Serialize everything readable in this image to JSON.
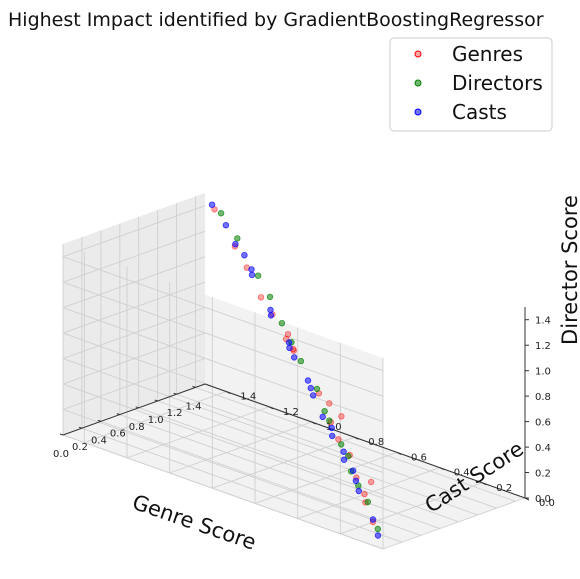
{
  "chart_data": {
    "type": "scatter",
    "projection": "3d",
    "title": "Highest Impact identified by GradientBoostingRegressor",
    "xlabel": "Genre Score",
    "ylabel": "Cast Score",
    "zlabel": "Director Score",
    "xlim": [
      0.0,
      1.5
    ],
    "ylim": [
      0.0,
      1.5
    ],
    "zlim": [
      0.0,
      1.5
    ],
    "x_ticks": [
      "0.0",
      "0.2",
      "0.4",
      "0.6",
      "0.8",
      "1.0",
      "1.2",
      "1.4"
    ],
    "y_ticks": [
      "0.0",
      "0.2",
      "0.4",
      "0.6",
      "0.8",
      "1.0",
      "1.2",
      "1.4"
    ],
    "z_ticks": [
      "0.0",
      "0.2",
      "0.4",
      "0.6",
      "0.8",
      "1.0",
      "1.2",
      "1.4"
    ],
    "grid": true,
    "legend_position": "top-right",
    "series": [
      {
        "name": "Genres",
        "color": "#ff0000",
        "points": [
          {
            "x": 0.12,
            "y": 0.1,
            "z": 0.12
          },
          {
            "x": 0.22,
            "y": 0.18,
            "z": 0.2
          },
          {
            "x": 0.3,
            "y": 0.22,
            "z": 0.22
          },
          {
            "x": 0.35,
            "y": 0.28,
            "z": 0.3
          },
          {
            "x": 0.46,
            "y": 0.36,
            "z": 0.4
          },
          {
            "x": 0.52,
            "y": 0.44,
            "z": 0.46
          },
          {
            "x": 0.62,
            "y": 0.52,
            "z": 0.52
          },
          {
            "x": 0.72,
            "y": 0.62,
            "z": 0.66
          },
          {
            "x": 0.74,
            "y": 0.58,
            "z": 0.6
          },
          {
            "x": 0.86,
            "y": 0.8,
            "z": 0.85
          },
          {
            "x": 0.9,
            "y": 0.82,
            "z": 0.84
          },
          {
            "x": 0.98,
            "y": 0.88,
            "z": 0.9
          },
          {
            "x": 1.04,
            "y": 0.98,
            "z": 0.98
          },
          {
            "x": 1.1,
            "y": 1.06,
            "z": 1.05
          },
          {
            "x": 1.22,
            "y": 1.18,
            "z": 1.18
          },
          {
            "x": 1.32,
            "y": 1.28,
            "z": 1.26
          },
          {
            "x": 1.42,
            "y": 1.42,
            "z": 1.44
          },
          {
            "x": 0.55,
            "y": 0.3,
            "z": 0.2
          },
          {
            "x": 0.8,
            "y": 0.55,
            "z": 0.5
          },
          {
            "x": 1.05,
            "y": 0.92,
            "z": 0.82
          }
        ]
      },
      {
        "name": "Directors",
        "color": "#008000",
        "points": [
          {
            "x": 0.08,
            "y": 0.06,
            "z": 0.1
          },
          {
            "x": 0.2,
            "y": 0.16,
            "z": 0.22
          },
          {
            "x": 0.28,
            "y": 0.24,
            "z": 0.28
          },
          {
            "x": 0.34,
            "y": 0.3,
            "z": 0.34
          },
          {
            "x": 0.4,
            "y": 0.34,
            "z": 0.42
          },
          {
            "x": 0.46,
            "y": 0.4,
            "z": 0.46
          },
          {
            "x": 0.56,
            "y": 0.5,
            "z": 0.56
          },
          {
            "x": 0.6,
            "y": 0.54,
            "z": 0.6
          },
          {
            "x": 0.7,
            "y": 0.62,
            "z": 0.7
          },
          {
            "x": 0.8,
            "y": 0.74,
            "z": 0.82
          },
          {
            "x": 0.88,
            "y": 0.82,
            "z": 0.9
          },
          {
            "x": 0.96,
            "y": 0.9,
            "z": 0.98
          },
          {
            "x": 1.06,
            "y": 1.0,
            "z": 1.1
          },
          {
            "x": 1.16,
            "y": 1.1,
            "z": 1.18
          },
          {
            "x": 1.3,
            "y": 1.26,
            "z": 1.34
          },
          {
            "x": 1.4,
            "y": 1.38,
            "z": 1.44
          }
        ]
      },
      {
        "name": "Casts",
        "color": "#0000ff",
        "points": [
          {
            "x": 0.06,
            "y": 0.05,
            "z": 0.06
          },
          {
            "x": 0.12,
            "y": 0.1,
            "z": 0.14
          },
          {
            "x": 0.24,
            "y": 0.22,
            "z": 0.26
          },
          {
            "x": 0.3,
            "y": 0.26,
            "z": 0.3
          },
          {
            "x": 0.36,
            "y": 0.3,
            "z": 0.34
          },
          {
            "x": 0.4,
            "y": 0.36,
            "z": 0.38
          },
          {
            "x": 0.44,
            "y": 0.38,
            "z": 0.42
          },
          {
            "x": 0.5,
            "y": 0.46,
            "z": 0.48
          },
          {
            "x": 0.54,
            "y": 0.48,
            "z": 0.52
          },
          {
            "x": 0.58,
            "y": 0.54,
            "z": 0.56
          },
          {
            "x": 0.66,
            "y": 0.62,
            "z": 0.66
          },
          {
            "x": 0.68,
            "y": 0.64,
            "z": 0.7
          },
          {
            "x": 0.74,
            "y": 0.68,
            "z": 0.72
          },
          {
            "x": 0.82,
            "y": 0.78,
            "z": 0.82
          },
          {
            "x": 0.86,
            "y": 0.82,
            "z": 0.86
          },
          {
            "x": 0.9,
            "y": 0.84,
            "z": 0.88
          },
          {
            "x": 0.98,
            "y": 0.96,
            "z": 1.0
          },
          {
            "x": 1.02,
            "y": 0.98,
            "z": 1.02
          },
          {
            "x": 1.14,
            "y": 1.12,
            "z": 1.18
          },
          {
            "x": 1.18,
            "y": 1.14,
            "z": 1.2
          },
          {
            "x": 1.24,
            "y": 1.2,
            "z": 1.26
          },
          {
            "x": 1.28,
            "y": 1.26,
            "z": 1.3
          },
          {
            "x": 1.36,
            "y": 1.34,
            "z": 1.38
          },
          {
            "x": 1.44,
            "y": 1.44,
            "z": 1.46
          }
        ]
      }
    ]
  }
}
